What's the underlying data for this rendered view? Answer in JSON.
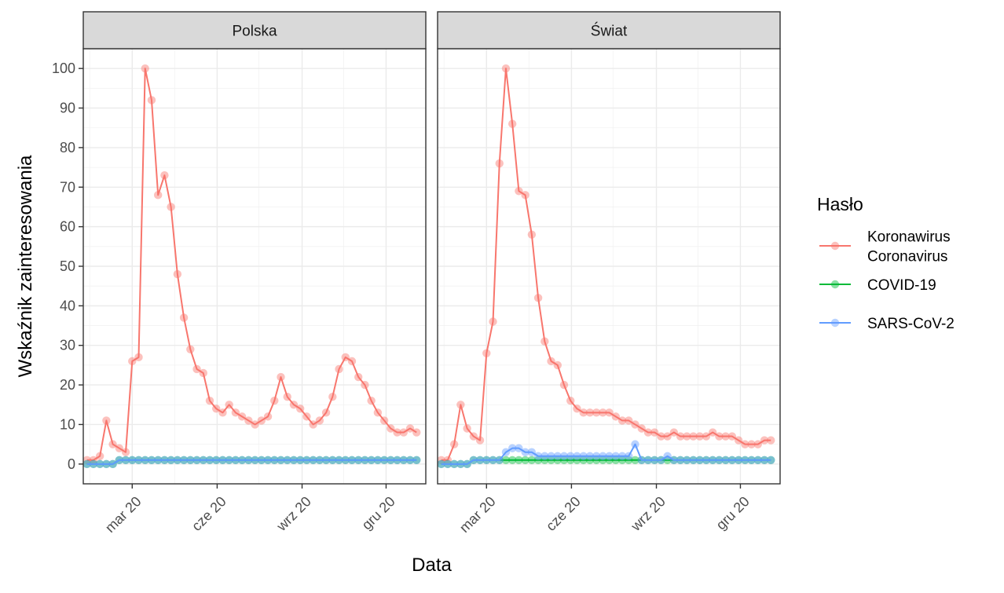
{
  "chart_data": {
    "type": "line",
    "ylabel": "Wskaźnik zainteresowania",
    "xlabel": "Data",
    "ylim": [
      -5,
      105
    ],
    "y_ticks": [
      0,
      10,
      20,
      30,
      40,
      50,
      60,
      70,
      80,
      90,
      100
    ],
    "x_tick_labels": [
      "mar 20",
      "cze 20",
      "wrz 20",
      "gru 20"
    ],
    "x_ticks": [
      "2020-03-01",
      "2020-06-01",
      "2020-09-01",
      "2020-12-01"
    ],
    "xlim": [
      "2020-01-08",
      "2021-01-13"
    ],
    "legend": {
      "title": "Hasło",
      "position": "right",
      "entries": [
        {
          "label_lines": [
            "Koronawirus",
            "Coronavirus"
          ],
          "color": "#f8766d"
        },
        {
          "label_lines": [
            "COVID-19"
          ],
          "color": "#00ba38"
        },
        {
          "label_lines": [
            "SARS-CoV-2"
          ],
          "color": "#619cff"
        }
      ]
    },
    "grid": true,
    "panels": [
      {
        "title": "Polska",
        "x_start": "2020-01-12",
        "x_step_days": 7,
        "series": [
          {
            "key": "Koronawirus",
            "color": "#f8766d",
            "values": [
              1,
              1,
              2,
              11,
              5,
              4,
              3,
              26,
              27,
              100,
              92,
              68,
              73,
              65,
              48,
              37,
              29,
              24,
              23,
              16,
              14,
              13,
              15,
              13,
              12,
              11,
              10,
              11,
              12,
              16,
              22,
              17,
              15,
              14,
              12,
              10,
              11,
              13,
              17,
              24,
              27,
              26,
              22,
              20,
              16,
              13,
              11,
              9,
              8,
              8,
              9,
              8
            ]
          },
          {
            "key": "COVID-19",
            "color": "#00ba38",
            "values": [
              0,
              0,
              0,
              0,
              0,
              1,
              1,
              1,
              1,
              1,
              1,
              1,
              1,
              1,
              1,
              1,
              1,
              1,
              1,
              1,
              1,
              1,
              1,
              1,
              1,
              1,
              1,
              1,
              1,
              1,
              1,
              1,
              1,
              1,
              1,
              1,
              1,
              1,
              1,
              1,
              1,
              1,
              1,
              1,
              1,
              1,
              1,
              1,
              1,
              1,
              1,
              1
            ]
          },
          {
            "key": "SARS-CoV-2",
            "color": "#619cff",
            "values": [
              0,
              0,
              0,
              0,
              0,
              1,
              1,
              1,
              1,
              1,
              1,
              1,
              1,
              1,
              1,
              1,
              1,
              1,
              1,
              1,
              1,
              1,
              1,
              1,
              1,
              1,
              1,
              1,
              1,
              1,
              1,
              1,
              1,
              1,
              1,
              1,
              1,
              1,
              1,
              1,
              1,
              1,
              1,
              1,
              1,
              1,
              1,
              1,
              1,
              1,
              1,
              1
            ]
          }
        ]
      },
      {
        "title": "Świat",
        "x_start": "2020-01-12",
        "x_step_days": 7,
        "series": [
          {
            "key": "Koronawirus",
            "color": "#f8766d",
            "values": [
              1,
              1,
              5,
              15,
              9,
              7,
              6,
              28,
              36,
              76,
              100,
              86,
              69,
              68,
              58,
              42,
              31,
              26,
              25,
              20,
              16,
              14,
              13,
              13,
              13,
              13,
              13,
              12,
              11,
              11,
              10,
              9,
              8,
              8,
              7,
              7,
              8,
              7,
              7,
              7,
              7,
              7,
              8,
              7,
              7,
              7,
              6,
              5,
              5,
              5,
              6,
              6
            ]
          },
          {
            "key": "COVID-19",
            "color": "#00ba38",
            "values": [
              0,
              0,
              0,
              0,
              0,
              1,
              1,
              1,
              1,
              1,
              1,
              1,
              1,
              1,
              1,
              1,
              1,
              1,
              1,
              1,
              1,
              1,
              1,
              1,
              1,
              1,
              1,
              1,
              1,
              1,
              1,
              1,
              1,
              1,
              1,
              1,
              1,
              1,
              1,
              1,
              1,
              1,
              1,
              1,
              1,
              1,
              1,
              1,
              1,
              1,
              1,
              1
            ]
          },
          {
            "key": "SARS-CoV-2",
            "color": "#619cff",
            "values": [
              0,
              0,
              0,
              0,
              0,
              1,
              1,
              1,
              1,
              1,
              3,
              4,
              4,
              3,
              3,
              2,
              2,
              2,
              2,
              2,
              2,
              2,
              2,
              2,
              2,
              2,
              2,
              2,
              2,
              2,
              5,
              1,
              1,
              1,
              1,
              2,
              1,
              1,
              1,
              1,
              1,
              1,
              1,
              1,
              1,
              1,
              1,
              1,
              1,
              1,
              1,
              1
            ]
          }
        ]
      }
    ]
  }
}
